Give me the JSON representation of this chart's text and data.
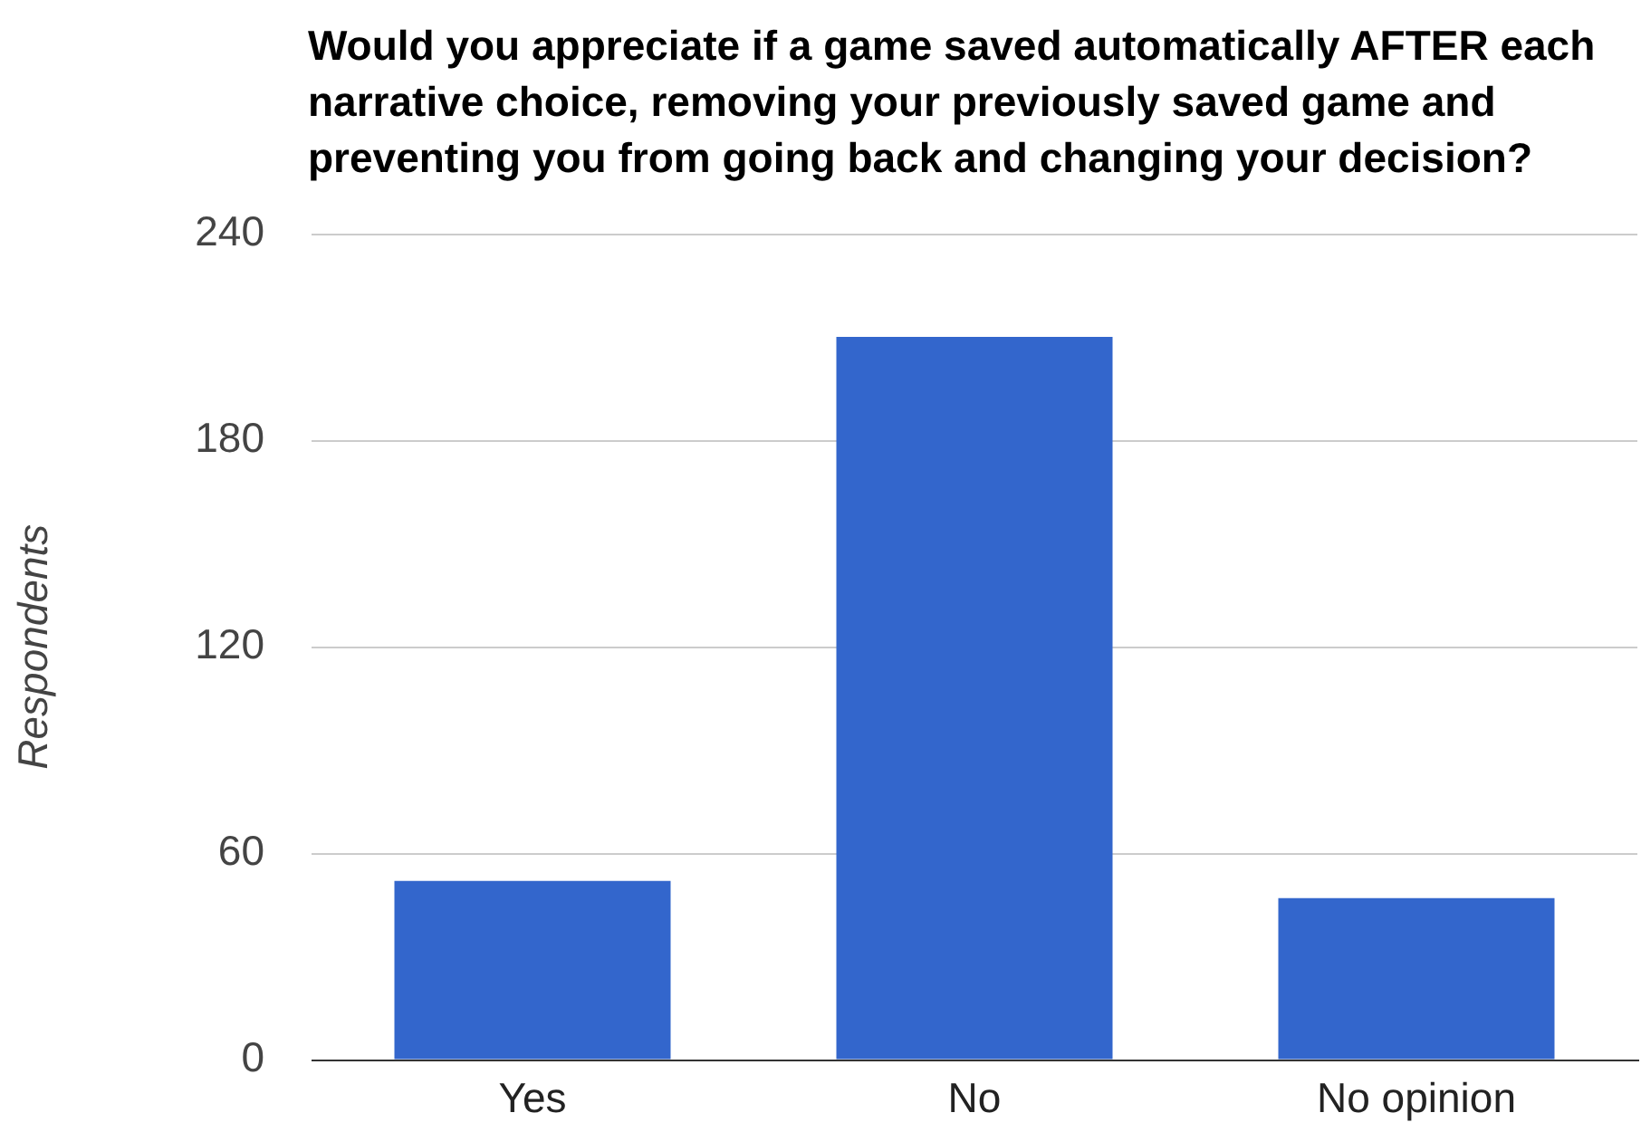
{
  "chart_data": {
    "type": "bar",
    "title": "Would you appreciate if a game saved automatically AFTER each narrative choice, removing your previously saved game and preventing you from going back and changing your decision?",
    "ylabel": "Respondents",
    "categories": [
      "Yes",
      "No",
      "No opinion"
    ],
    "values": [
      52,
      210,
      47
    ],
    "color": "#3366cc",
    "ylim": [
      0,
      240
    ],
    "yticks": [
      0,
      60,
      120,
      180,
      240
    ],
    "grid": "y"
  }
}
